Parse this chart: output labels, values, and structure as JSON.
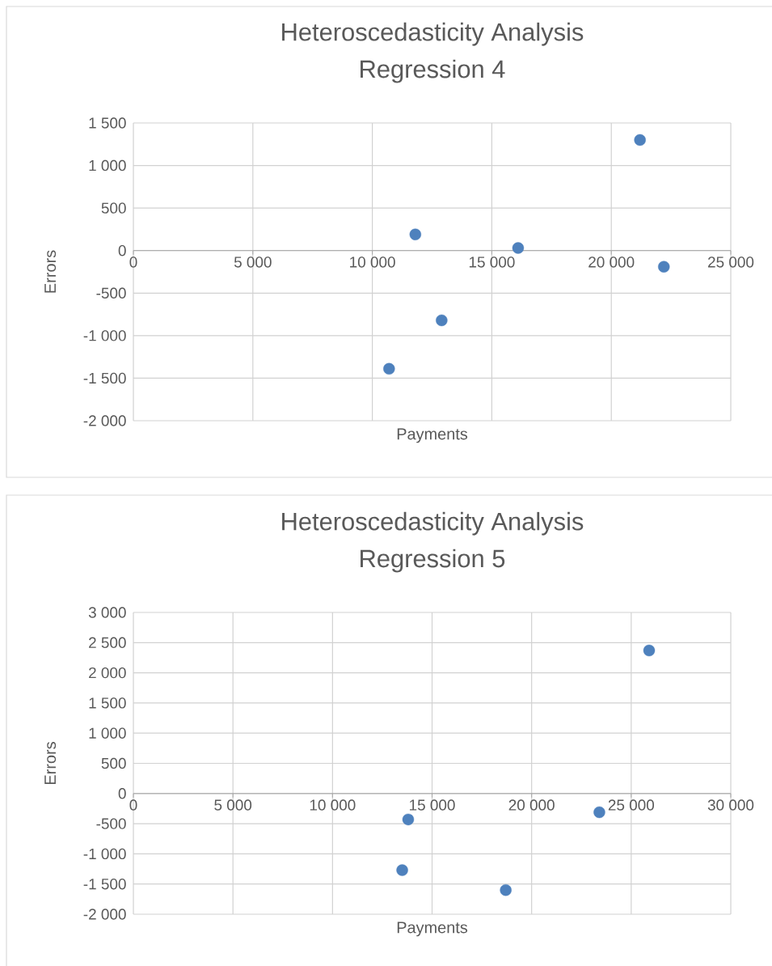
{
  "chart_data": [
    {
      "type": "scatter",
      "title": "Heteroscedasticity Analysis",
      "subtitle": "Regression 4",
      "xlabel": "Payments",
      "ylabel": "Errors",
      "color": "#4e81bd",
      "marker": "circle",
      "grid": true,
      "x": [
        10700,
        11800,
        12900,
        16100,
        21200,
        22200
      ],
      "values": [
        -1390,
        190,
        -820,
        30,
        1300,
        -190
      ],
      "xlim": [
        0,
        25000
      ],
      "ylim": [
        -2000,
        1500
      ],
      "xticks": [
        0,
        {
          "value": 5000,
          "label": "5 000"
        },
        {
          "value": 10000,
          "label": "10 000"
        },
        {
          "value": 15000,
          "label": "15 000"
        },
        {
          "value": 20000,
          "label": "20 000"
        },
        {
          "value": 25000,
          "label": "25 000"
        }
      ],
      "yticks": [
        {
          "value": -2000,
          "label": "-2 000"
        },
        {
          "value": -1500,
          "label": "-1 500"
        },
        {
          "value": -1000,
          "label": "-1 000"
        },
        -500,
        0,
        500,
        {
          "value": 1000,
          "label": "1 000"
        },
        {
          "value": 1500,
          "label": "1 500"
        }
      ]
    },
    {
      "type": "scatter",
      "title": "Heteroscedasticity Analysis",
      "subtitle": "Regression 5",
      "xlabel": "Payments",
      "ylabel": "Errors",
      "color": "#4e81bd",
      "marker": "circle",
      "grid": true,
      "x": [
        13800,
        13500,
        18700,
        23400,
        25900
      ],
      "values": [
        -430,
        -1270,
        -1600,
        -310,
        2370
      ],
      "xlim": [
        0,
        30000
      ],
      "ylim": [
        -2000,
        3000
      ],
      "xticks": [
        0,
        {
          "value": 5000,
          "label": "5 000"
        },
        {
          "value": 10000,
          "label": "10 000"
        },
        {
          "value": 15000,
          "label": "15 000"
        },
        {
          "value": 20000,
          "label": "20 000"
        },
        {
          "value": 25000,
          "label": "25 000"
        },
        {
          "value": 30000,
          "label": "30 000"
        }
      ],
      "yticks": [
        {
          "value": -2000,
          "label": "-2 000"
        },
        {
          "value": -1500,
          "label": "-1 500"
        },
        {
          "value": -1000,
          "label": "-1 000"
        },
        -500,
        0,
        500,
        {
          "value": 1000,
          "label": "1 000"
        },
        {
          "value": 1500,
          "label": "1 500"
        },
        {
          "value": 2000,
          "label": "2 000"
        },
        {
          "value": 2500,
          "label": "2 500"
        },
        {
          "value": 3000,
          "label": "3 000"
        }
      ]
    }
  ]
}
